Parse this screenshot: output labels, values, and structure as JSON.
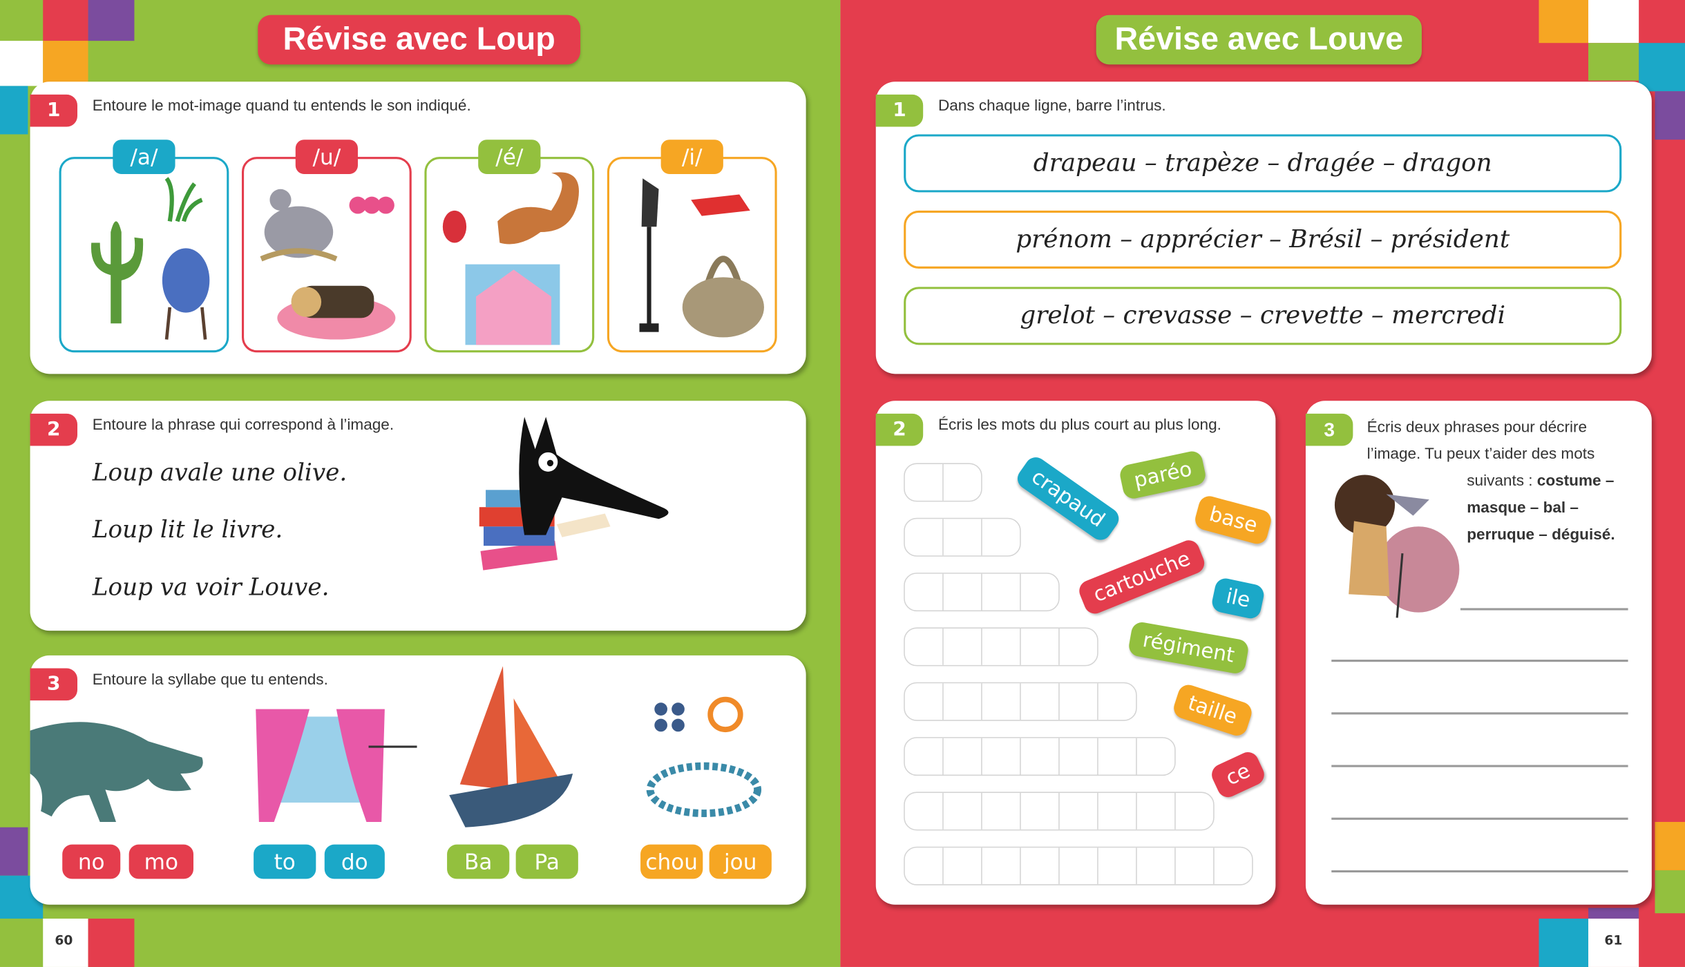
{
  "colors": {
    "green": "#93c03e",
    "red": "#e43d4d",
    "teal": "#1ba8c8",
    "orange": "#f6a623",
    "purple": "#7b4c9e"
  },
  "left_page": {
    "title": "Révise avec Loup",
    "page_number": "60",
    "ex1": {
      "number": "1",
      "instruction": "Entoure le mot-image quand tu entends le son indiqué.",
      "sounds": [
        {
          "label": "/a/",
          "color": "teal"
        },
        {
          "label": "/u/",
          "color": "red"
        },
        {
          "label": "/é/",
          "color": "green"
        },
        {
          "label": "/i/",
          "color": "orange"
        }
      ]
    },
    "ex2": {
      "number": "2",
      "instruction": "Entoure la phrase qui correspond à l’image.",
      "sentences": [
        "Loup avale une olive.",
        "Loup lit le livre.",
        "Loup va voir Louve."
      ]
    },
    "ex3": {
      "number": "3",
      "instruction": "Entoure la syllabe que tu entends.",
      "groups": [
        {
          "options": [
            "no",
            "mo"
          ],
          "color": "red"
        },
        {
          "options": [
            "to",
            "do"
          ],
          "color": "teal"
        },
        {
          "options": [
            "Ba",
            "Pa"
          ],
          "color": "green"
        },
        {
          "options": [
            "chou",
            "jou"
          ],
          "color": "orange"
        }
      ]
    }
  },
  "right_page": {
    "title": "Révise avec Louve",
    "page_number": "61",
    "ex1": {
      "number": "1",
      "instruction": "Dans chaque ligne, barre l’intrus.",
      "rows": [
        "drapeau – trapèze – dragée – dragon",
        "prénom – apprécier – Brésil – président",
        "grelot – crevasse – crevette – mercredi"
      ]
    },
    "ex2": {
      "number": "2",
      "instruction": "Écris les mots du plus court au plus long.",
      "words": [
        "crapaud",
        "paréo",
        "base",
        "cartouche",
        "ile",
        "régiment",
        "taille",
        "ce"
      ]
    },
    "ex3": {
      "number": "3",
      "instruction_line1": "Écris deux phrases pour décrire",
      "instruction_line2": "l’image. Tu peux t’aider des mots",
      "instruction_line3": "suivants :",
      "words_line1": "costume –",
      "words_line2": "masque – bal –",
      "words_line3": "perruque – déguisé",
      "period": "."
    }
  }
}
